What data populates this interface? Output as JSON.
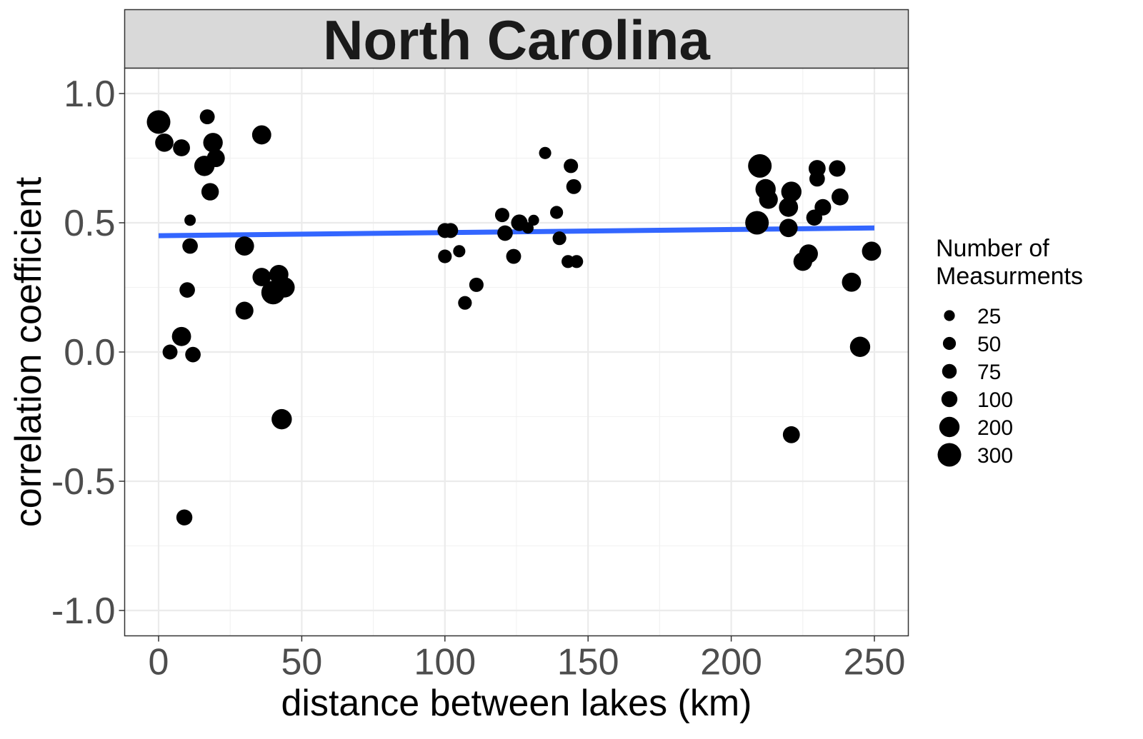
{
  "chart_data": {
    "type": "scatter",
    "title": "North Carolina",
    "xlabel": "distance between lakes (km)",
    "ylabel": "correlation coefficient",
    "xlim": [
      -12,
      262
    ],
    "ylim": [
      -1.1,
      1.1
    ],
    "xticks": [
      0,
      50,
      100,
      150,
      200,
      250
    ],
    "xtick_labels": [
      "0",
      "50",
      "100",
      "150",
      "200",
      "250"
    ],
    "yticks": [
      -1.0,
      -0.5,
      0.0,
      0.5,
      1.0
    ],
    "ytick_labels": [
      "-1.0",
      "-0.5",
      "0.0",
      "0.5",
      "1.0"
    ],
    "grid": true,
    "legend": {
      "title_line1": "Number of",
      "title_line2": "Measurments",
      "position": "right",
      "entries": [
        {
          "label": "25",
          "size": 25
        },
        {
          "label": "50",
          "size": 50
        },
        {
          "label": "75",
          "size": 75
        },
        {
          "label": "100",
          "size": 100
        },
        {
          "label": "200",
          "size": 200
        },
        {
          "label": "300",
          "size": 300
        }
      ]
    },
    "trend_line": {
      "color": "#3366FF",
      "x": [
        0,
        250
      ],
      "y": [
        0.45,
        0.48
      ]
    },
    "points": [
      {
        "x": 0,
        "y": 0.89,
        "n": 300
      },
      {
        "x": 2,
        "y": 0.81,
        "n": 150
      },
      {
        "x": 8,
        "y": 0.79,
        "n": 120
      },
      {
        "x": 17,
        "y": 0.91,
        "n": 80
      },
      {
        "x": 19,
        "y": 0.81,
        "n": 180
      },
      {
        "x": 20,
        "y": 0.75,
        "n": 140
      },
      {
        "x": 16,
        "y": 0.72,
        "n": 200
      },
      {
        "x": 18,
        "y": 0.62,
        "n": 130
      },
      {
        "x": 36,
        "y": 0.84,
        "n": 170
      },
      {
        "x": 11,
        "y": 0.51,
        "n": 30
      },
      {
        "x": 11,
        "y": 0.41,
        "n": 90
      },
      {
        "x": 30,
        "y": 0.41,
        "n": 170
      },
      {
        "x": 10,
        "y": 0.24,
        "n": 90
      },
      {
        "x": 30,
        "y": 0.16,
        "n": 140
      },
      {
        "x": 36,
        "y": 0.29,
        "n": 150
      },
      {
        "x": 42,
        "y": 0.3,
        "n": 170
      },
      {
        "x": 44,
        "y": 0.25,
        "n": 200
      },
      {
        "x": 40,
        "y": 0.23,
        "n": 300
      },
      {
        "x": 8,
        "y": 0.06,
        "n": 170
      },
      {
        "x": 4,
        "y": 0.0,
        "n": 80
      },
      {
        "x": 12,
        "y": -0.01,
        "n": 90
      },
      {
        "x": 43,
        "y": -0.26,
        "n": 200
      },
      {
        "x": 9,
        "y": -0.64,
        "n": 100
      },
      {
        "x": 100,
        "y": 0.47,
        "n": 80
      },
      {
        "x": 102,
        "y": 0.47,
        "n": 80
      },
      {
        "x": 100,
        "y": 0.37,
        "n": 60
      },
      {
        "x": 105,
        "y": 0.39,
        "n": 40
      },
      {
        "x": 111,
        "y": 0.26,
        "n": 70
      },
      {
        "x": 107,
        "y": 0.19,
        "n": 60
      },
      {
        "x": 120,
        "y": 0.53,
        "n": 70
      },
      {
        "x": 121,
        "y": 0.46,
        "n": 90
      },
      {
        "x": 124,
        "y": 0.37,
        "n": 80
      },
      {
        "x": 126,
        "y": 0.5,
        "n": 110
      },
      {
        "x": 129,
        "y": 0.48,
        "n": 30
      },
      {
        "x": 131,
        "y": 0.51,
        "n": 25
      },
      {
        "x": 135,
        "y": 0.77,
        "n": 40
      },
      {
        "x": 139,
        "y": 0.54,
        "n": 50
      },
      {
        "x": 140,
        "y": 0.44,
        "n": 60
      },
      {
        "x": 144,
        "y": 0.72,
        "n": 70
      },
      {
        "x": 145,
        "y": 0.64,
        "n": 80
      },
      {
        "x": 143,
        "y": 0.35,
        "n": 50
      },
      {
        "x": 146,
        "y": 0.35,
        "n": 50
      },
      {
        "x": 210,
        "y": 0.72,
        "n": 300
      },
      {
        "x": 212,
        "y": 0.63,
        "n": 200
      },
      {
        "x": 213,
        "y": 0.59,
        "n": 160
      },
      {
        "x": 209,
        "y": 0.5,
        "n": 300
      },
      {
        "x": 221,
        "y": 0.62,
        "n": 200
      },
      {
        "x": 220,
        "y": 0.56,
        "n": 170
      },
      {
        "x": 220,
        "y": 0.48,
        "n": 150
      },
      {
        "x": 230,
        "y": 0.71,
        "n": 120
      },
      {
        "x": 230,
        "y": 0.67,
        "n": 90
      },
      {
        "x": 237,
        "y": 0.71,
        "n": 110
      },
      {
        "x": 238,
        "y": 0.6,
        "n": 120
      },
      {
        "x": 232,
        "y": 0.56,
        "n": 110
      },
      {
        "x": 229,
        "y": 0.52,
        "n": 100
      },
      {
        "x": 227,
        "y": 0.38,
        "n": 160
      },
      {
        "x": 225,
        "y": 0.35,
        "n": 160
      },
      {
        "x": 249,
        "y": 0.39,
        "n": 170
      },
      {
        "x": 242,
        "y": 0.27,
        "n": 170
      },
      {
        "x": 245,
        "y": 0.02,
        "n": 200
      },
      {
        "x": 221,
        "y": -0.32,
        "n": 120
      }
    ]
  }
}
